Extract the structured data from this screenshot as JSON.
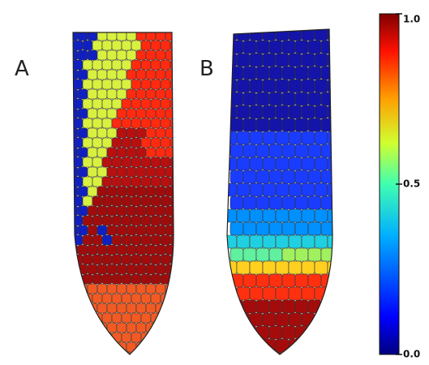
{
  "panels": [
    {
      "label": "A"
    },
    {
      "label": "B"
    }
  ],
  "colorbar": {
    "ylim": [
      0,
      1
    ],
    "ticks": [
      {
        "value": 0,
        "label": "0.0"
      },
      {
        "value": 0.5,
        "label": "0.5"
      },
      {
        "value": 1,
        "label": "1.0"
      }
    ]
  }
}
